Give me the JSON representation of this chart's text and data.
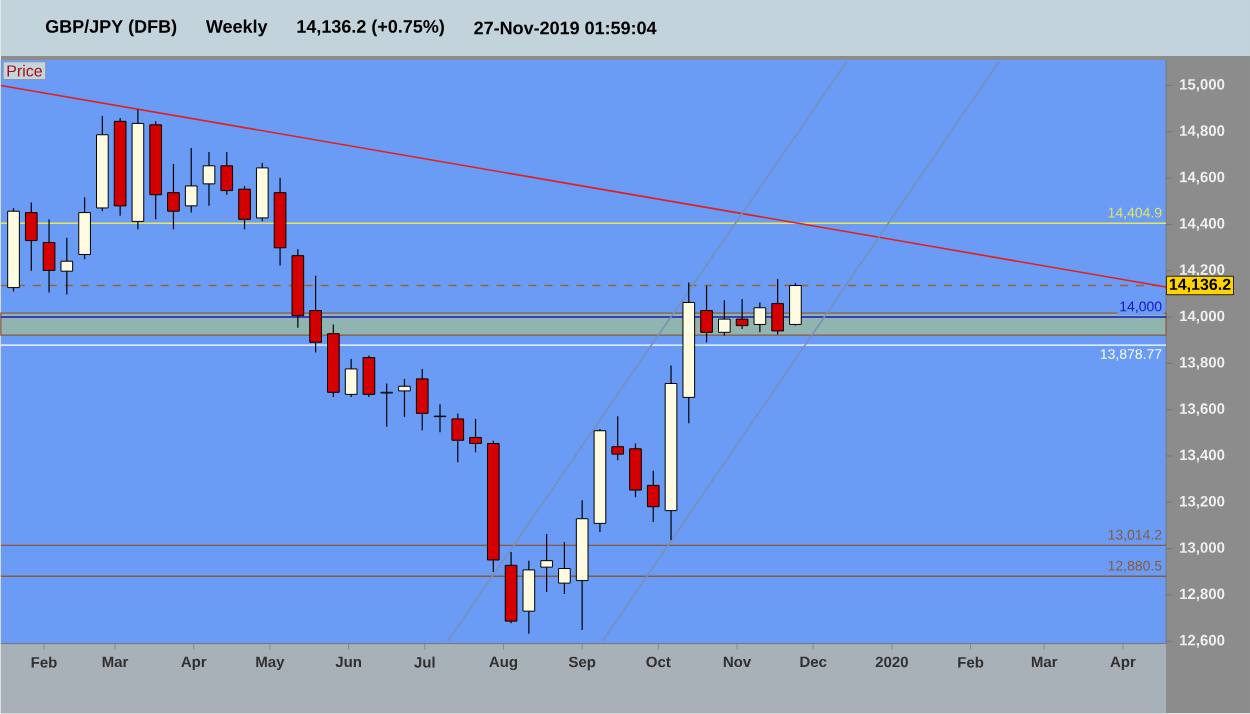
{
  "chart_data": {
    "type": "candlestick",
    "title": "GBP/JPY (DFB)",
    "subtitle": "Weekly",
    "annotations": [
      "14,136.2 (+0.75%)",
      "27-Nov-2019 01:59:04",
      "Price",
      "14,136.2"
    ],
    "x": [
      "2019-01-20",
      "2019-01-27",
      "2019-02-03",
      "2019-02-10",
      "2019-02-17",
      "2019-02-24",
      "2019-03-03",
      "2019-03-10",
      "2019-03-17",
      "2019-03-24",
      "2019-03-31",
      "2019-04-07",
      "2019-04-14",
      "2019-04-21",
      "2019-04-28",
      "2019-05-05",
      "2019-05-12",
      "2019-05-19",
      "2019-05-26",
      "2019-06-02",
      "2019-06-09",
      "2019-06-16",
      "2019-06-23",
      "2019-06-30",
      "2019-07-07",
      "2019-07-14",
      "2019-07-21",
      "2019-07-28",
      "2019-08-04",
      "2019-08-11",
      "2019-08-18",
      "2019-08-25",
      "2019-09-01",
      "2019-09-08",
      "2019-09-15",
      "2019-09-22",
      "2019-09-29",
      "2019-10-06",
      "2019-10-13",
      "2019-10-20",
      "2019-10-27",
      "2019-11-03",
      "2019-11-10",
      "2019-11-17",
      "2019-11-24"
    ],
    "ohlc": [
      [
        14127,
        14470,
        14110,
        14457
      ],
      [
        14451,
        14494,
        14200,
        14330
      ],
      [
        14322,
        14422,
        14106,
        14201
      ],
      [
        14198,
        14342,
        14097,
        14241
      ],
      [
        14270,
        14517,
        14250,
        14451
      ],
      [
        14471,
        14868,
        14457,
        14787
      ],
      [
        14845,
        14859,
        14437,
        14480
      ],
      [
        14413,
        14896,
        14379,
        14836
      ],
      [
        14830,
        14845,
        14422,
        14528
      ],
      [
        14537,
        14661,
        14379,
        14457
      ],
      [
        14480,
        14730,
        14451,
        14566
      ],
      [
        14575,
        14713,
        14480,
        14653
      ],
      [
        14653,
        14713,
        14528,
        14546
      ],
      [
        14552,
        14566,
        14379,
        14422
      ],
      [
        14428,
        14666,
        14414,
        14644
      ],
      [
        14537,
        14601,
        14222,
        14299
      ],
      [
        14265,
        14293,
        13954,
        14006
      ],
      [
        14028,
        14178,
        13847,
        13891
      ],
      [
        13928,
        13968,
        13655,
        13675
      ],
      [
        13666,
        13819,
        13655,
        13776
      ],
      [
        13825,
        13834,
        13655,
        13666
      ],
      [
        13672,
        13713,
        13526,
        13675
      ],
      [
        13681,
        13733,
        13569,
        13701
      ],
      [
        13733,
        13776,
        13511,
        13584
      ],
      [
        13570,
        13623,
        13503,
        13572
      ],
      [
        13560,
        13584,
        13373,
        13468
      ],
      [
        13480,
        13560,
        13416,
        13454
      ],
      [
        13454,
        13466,
        12899,
        12951
      ],
      [
        12928,
        12985,
        12678,
        12687
      ],
      [
        12730,
        12948,
        12632,
        12908
      ],
      [
        12920,
        13063,
        12813,
        12948
      ],
      [
        12851,
        13028,
        12804,
        12914
      ],
      [
        12862,
        13209,
        12649,
        13129
      ],
      [
        13109,
        13517,
        13072,
        13509
      ],
      [
        13440,
        13572,
        13382,
        13408
      ],
      [
        13431,
        13454,
        13222,
        13253
      ],
      [
        13273,
        13336,
        13115,
        13181
      ],
      [
        13164,
        13791,
        13037,
        13713
      ],
      [
        13653,
        14149,
        13541,
        14063
      ],
      [
        14028,
        14135,
        13891,
        13934
      ],
      [
        13934,
        14072,
        13920,
        13991
      ],
      [
        13991,
        14078,
        13948,
        13963
      ],
      [
        13968,
        14063,
        13934,
        14040
      ],
      [
        14058,
        14164,
        13925,
        13940
      ],
      [
        13968,
        14147,
        13963,
        14136.2
      ]
    ],
    "series": [
      {
        "type": "line",
        "color": "#e02020",
        "x": [
          "2019-01-15",
          "2020-04-18"
        ],
        "values": [
          15000,
          14130
        ]
      },
      {
        "type": "line",
        "color": "#7890b8",
        "x": [
          "2019-07-10",
          "2019-12-14"
        ],
        "values": [
          12600,
          15100
        ]
      },
      {
        "type": "line",
        "color": "#7890b8",
        "x": [
          "2019-09-09",
          "2020-02-12"
        ],
        "values": [
          12600,
          15100
        ]
      }
    ],
    "ref_lines": [
      {
        "axis": "y",
        "value": 14404.9,
        "label": "14,404.9",
        "color": "#e6e65a"
      },
      {
        "axis": "y",
        "value": 14136,
        "label": null,
        "color": "#a06030",
        "line_style": "dashed"
      },
      {
        "axis": "y",
        "value": 14000,
        "label": "14,000",
        "color": "#1818c8"
      },
      {
        "axis": "y",
        "value": 13878.77,
        "label": "13,878.77",
        "color": "#ffffff"
      },
      {
        "axis": "y",
        "value": 13014.2,
        "label": "13,014.2",
        "color": "#8a5a3a"
      },
      {
        "axis": "y",
        "value": 12880.5,
        "label": "12,880.5",
        "color": "#8a5a3a"
      }
    ],
    "bands": [
      {
        "axis": "y",
        "from": 13922,
        "to": 14017,
        "label": null,
        "color": "#90b4b0"
      }
    ],
    "xlim": [
      "2019-01-15",
      "2020-04-18"
    ],
    "ylim": [
      12590,
      15110
    ],
    "xticks": [
      {
        "value": "2019-02-01",
        "label": "Feb"
      },
      {
        "value": "2019-03-01",
        "label": "Mar"
      },
      {
        "value": "2019-04-01",
        "label": "Apr"
      },
      {
        "value": "2019-05-01",
        "label": "May"
      },
      {
        "value": "2019-06-01",
        "label": "Jun"
      },
      {
        "value": "2019-07-01",
        "label": "Jul"
      },
      {
        "value": "2019-08-01",
        "label": "Aug"
      },
      {
        "value": "2019-09-01",
        "label": "Sep"
      },
      {
        "value": "2019-10-01",
        "label": "Oct"
      },
      {
        "value": "2019-11-01",
        "label": "Nov"
      },
      {
        "value": "2019-12-01",
        "label": "Dec"
      },
      {
        "value": "2020-01-01",
        "label": "2020"
      },
      {
        "value": "2020-02-01",
        "label": "Feb"
      },
      {
        "value": "2020-03-01",
        "label": "Mar"
      },
      {
        "value": "2020-04-01",
        "label": "Apr"
      }
    ],
    "yticks": [
      {
        "value": 12600,
        "label": "12,600"
      },
      {
        "value": 12800,
        "label": "12,800"
      },
      {
        "value": 13000,
        "label": "13,000"
      },
      {
        "value": 13200,
        "label": "13,200"
      },
      {
        "value": 13400,
        "label": "13,400"
      },
      {
        "value": 13600,
        "label": "13,600"
      },
      {
        "value": 13800,
        "label": "13,800"
      },
      {
        "value": 14000,
        "label": "14,000"
      },
      {
        "value": 14200,
        "label": "14,200"
      },
      {
        "value": 14400,
        "label": "14,400"
      },
      {
        "value": 14600,
        "label": "14,600"
      },
      {
        "value": 14800,
        "label": "14,800"
      },
      {
        "value": 15000,
        "label": "15,000"
      }
    ]
  }
}
